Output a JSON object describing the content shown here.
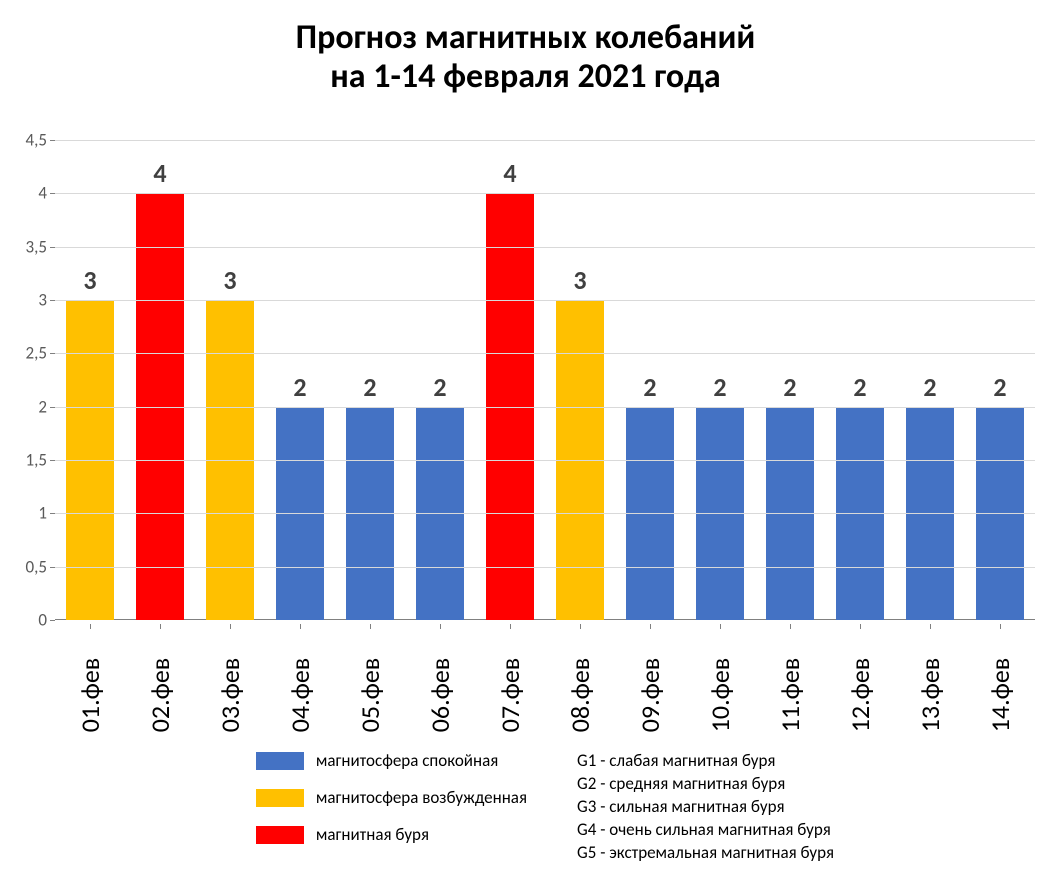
{
  "chart": {
    "type": "bar",
    "title_line1": "Прогноз магнитных колебаний",
    "title_line2": "на 1-14 февраля 2021 года",
    "title_fontsize": 34,
    "title_color": "#000000",
    "background_color": "#ffffff",
    "grid_color": "#d9d9d9",
    "axis_line_color": "#808080",
    "ylim": [
      0,
      4.5
    ],
    "ytick_step": 0.5,
    "yticks": [
      "0",
      "0,5",
      "1",
      "1,5",
      "2",
      "2,5",
      "3",
      "3,5",
      "4",
      "4,5"
    ],
    "ytick_fontsize": 17,
    "ytick_color": "#595959",
    "categories": [
      "01.фев",
      "02.фев",
      "03.фев",
      "04.фев",
      "05.фев",
      "06.фев",
      "07.фев",
      "08.фев",
      "09.фев",
      "10.фев",
      "11.фев",
      "12.фев",
      "13.фев",
      "14.фев"
    ],
    "xlabel_fontsize": 26,
    "xlabel_color": "#000000",
    "values": [
      3,
      4,
      3,
      2,
      2,
      2,
      4,
      3,
      2,
      2,
      2,
      2,
      2,
      2
    ],
    "datalabel_fontsize": 26,
    "datalabel_color": "#404040",
    "bar_colors": [
      "#ffc000",
      "#ff0000",
      "#ffc000",
      "#4472c4",
      "#4472c4",
      "#4472c4",
      "#ff0000",
      "#ffc000",
      "#4472c4",
      "#4472c4",
      "#4472c4",
      "#4472c4",
      "#4472c4",
      "#4472c4"
    ],
    "bar_width_ratio": 0.68,
    "legend": {
      "swatches": [
        {
          "color": "#4472c4",
          "label": "магнитосфера спокойная"
        },
        {
          "color": "#ffc000",
          "label": "магнитосфера возбужденная"
        },
        {
          "color": "#ff0000",
          "label": "магнитная буря"
        }
      ],
      "descriptions": [
        "G1 - слабая магнитная буря",
        "G2 - средняя магнитная буря",
        "G3 - сильная магнитная буря",
        "G4 - очень сильная магнитная буря",
        "G5 - экстремальная магнитная буря"
      ],
      "fontsize": 17,
      "color": "#000000"
    }
  }
}
